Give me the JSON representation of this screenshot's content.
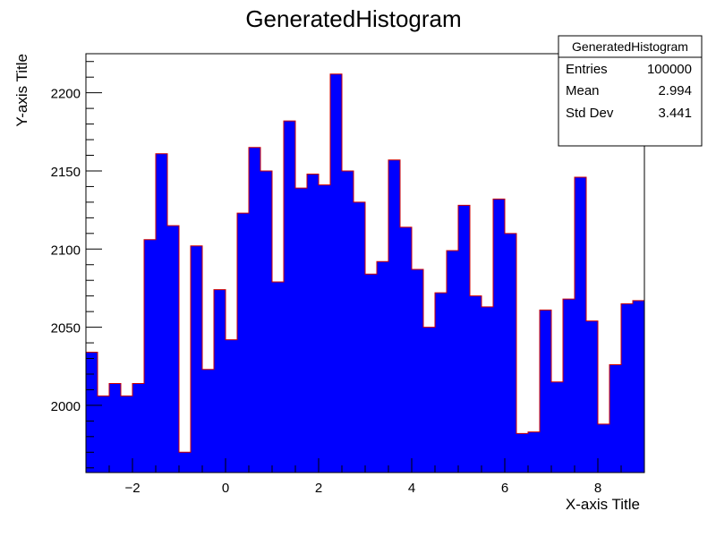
{
  "chart_data": {
    "type": "bar",
    "title": "GeneratedHistogram",
    "xlabel": "X-axis Title",
    "ylabel": "Y-axis Title",
    "xlim": [
      -3,
      9
    ],
    "ylim": [
      1957,
      2225
    ],
    "bin_width": 0.25,
    "x_ticks": [
      -2,
      0,
      2,
      4,
      6,
      8
    ],
    "y_ticks": [
      2000,
      2050,
      2100,
      2150,
      2200
    ],
    "values": [
      2034,
      2006,
      2014,
      2006,
      2014,
      2106,
      2161,
      2115,
      1970,
      2102,
      2023,
      2074,
      2042,
      2123,
      2165,
      2150,
      2079,
      2182,
      2139,
      2148,
      2141,
      2212,
      2150,
      2130,
      2084,
      2092,
      2157,
      2114,
      2087,
      2050,
      2072,
      2099,
      2128,
      2070,
      2063,
      2132,
      2110,
      1982,
      1983,
      2061,
      2015,
      2068,
      2146,
      2054,
      1988,
      2026,
      2065,
      2067
    ],
    "fill_color": "#0000ff",
    "line_color": "#cc0000",
    "grid": false,
    "stats": {
      "title": "GeneratedHistogram",
      "rows": [
        {
          "label": "Entries",
          "value": "100000"
        },
        {
          "label": "Mean",
          "value": "2.994"
        },
        {
          "label": "Std Dev",
          "value": "3.441"
        }
      ]
    }
  }
}
